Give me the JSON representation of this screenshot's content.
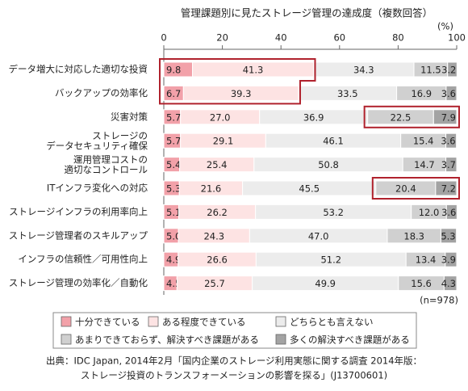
{
  "chart_data": {
    "type": "bar",
    "orientation": "horizontal",
    "stacked": true,
    "title": "管理課題別に見たストレージ管理の達成度（複数回答）",
    "unit_label": "(%)",
    "note": "(n=978)",
    "source": [
      "出典：IDC Japan, 2014年2月「国内企業のストレージ利用実態に関する調査 2014年版：",
      "ストレージ投資のトランスフォーメーションの影響を探る」(J13700601)"
    ],
    "categories": [
      "データ増大に対応した適切な投資",
      "バックアップの効率化",
      "災害対策",
      "ストレージの\nデータセキュリティ確保",
      "運用管理コストの\n適切なコントロール",
      "ITインフラ変化への対応",
      "ストレージインフラの利用率向上",
      "ストレージ管理者のスキルアップ",
      "インフラの信頼性／可用性向上",
      "ストレージ管理の効率化／自動化"
    ],
    "xlim": [
      0,
      100
    ],
    "xticks": [
      0,
      20,
      40,
      60,
      80,
      100
    ],
    "grid": false,
    "series": [
      {
        "name": "十分できている",
        "color": "#f2a1a9",
        "values": [
          9.8,
          6.7,
          5.7,
          5.7,
          5.4,
          5.3,
          5.1,
          5.0,
          4.9,
          4.5
        ],
        "value_labels": [
          "9.8",
          "6.7",
          "5.7",
          "5.7",
          "5.4",
          "5.3",
          "5.1",
          "5.0",
          "4.9",
          "4.5"
        ]
      },
      {
        "name": "ある程度できている",
        "color": "#fde3e3",
        "values": [
          41.3,
          39.3,
          27.0,
          29.1,
          25.4,
          21.6,
          26.2,
          24.3,
          26.6,
          25.7
        ],
        "value_labels": [
          "41.3",
          "39.3",
          "27.0",
          "29.1",
          "25.4",
          "21.6",
          "26.2",
          "24.3",
          "26.6",
          "25.7"
        ]
      },
      {
        "name": "どちらとも言えない",
        "color": "#ececec",
        "values": [
          34.3,
          33.5,
          36.9,
          46.1,
          50.8,
          45.5,
          53.2,
          47.0,
          51.2,
          49.9
        ],
        "value_labels": [
          "34.3",
          "33.5",
          "36.9",
          "46.1",
          "50.8",
          "45.5",
          "53.2",
          "47.0",
          "51.2",
          "49.9"
        ]
      },
      {
        "name": "あまりできておらず、解決すべき課題がある",
        "color": "#d0d0d0",
        "values": [
          11.5,
          16.9,
          22.5,
          15.4,
          14.7,
          20.4,
          12.0,
          18.3,
          13.4,
          15.6
        ],
        "value_labels": [
          "11.5",
          "16.9",
          "22.5",
          "15.4",
          "14.7",
          "20.4",
          "12.0",
          "18.3",
          "13.4",
          "15.6"
        ]
      },
      {
        "name": "多くの解決すべき課題がある",
        "color": "#a3a3a3",
        "values": [
          3.2,
          3.6,
          7.9,
          3.6,
          3.7,
          7.2,
          3.6,
          5.3,
          3.9,
          4.3
        ],
        "value_labels": [
          "3.2",
          "3.6",
          "7.9",
          "3.6",
          "3.7",
          "7.2",
          "3.6",
          "5.3",
          "3.9",
          "4.3"
        ]
      }
    ]
  }
}
